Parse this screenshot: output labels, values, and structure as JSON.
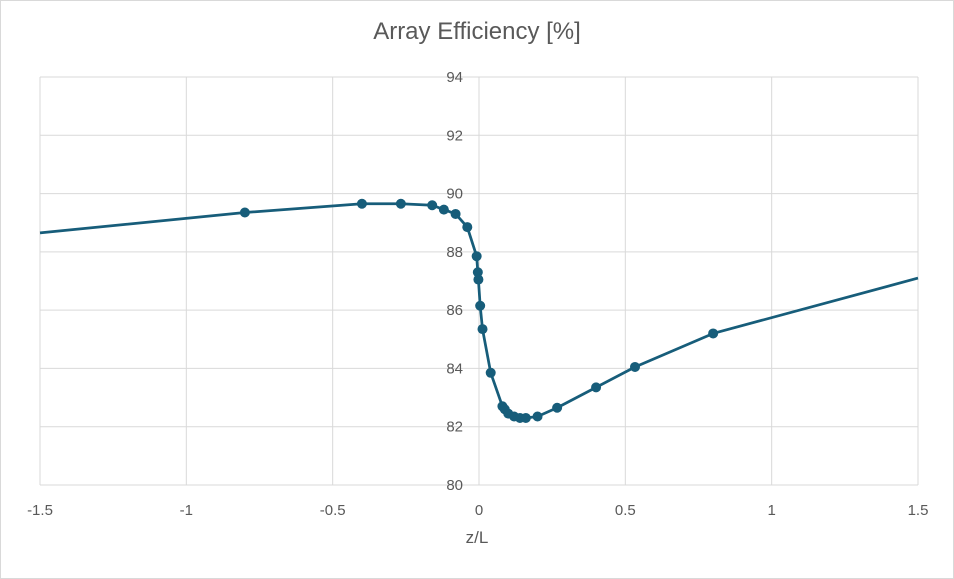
{
  "chart_data": {
    "type": "scatter",
    "title": "Array Efficiency [%]",
    "xlabel": "z/L",
    "ylabel": "",
    "xlim": [
      -1.5,
      1.5
    ],
    "ylim": [
      80,
      94
    ],
    "x_ticks": [
      -1.5,
      -1,
      -0.5,
      0,
      0.5,
      1,
      1.5
    ],
    "x_tick_labels": [
      "-1.5",
      "-1",
      "-0.5",
      "0",
      "0.5",
      "1",
      "1.5"
    ],
    "y_ticks": [
      80,
      82,
      84,
      86,
      88,
      90,
      92,
      94
    ],
    "y_tick_labels": [
      "80",
      "82",
      "84",
      "86",
      "88",
      "90",
      "92",
      "94"
    ],
    "grid": true,
    "legend": "none",
    "color": "#175d7a",
    "line_extension": {
      "left": {
        "x": -1.5,
        "y": 88.65
      },
      "right": {
        "x": 1.5,
        "y": 87.1
      }
    },
    "series": [
      {
        "x": [
          -0.8,
          -0.4,
          -0.267,
          -0.16,
          -0.12,
          -0.08,
          -0.04,
          -0.008,
          -0.004,
          -0.002,
          0.004,
          0.012,
          0.04,
          0.08,
          0.088,
          0.1,
          0.12,
          0.14,
          0.16,
          0.2,
          0.267,
          0.4,
          0.533,
          0.8
        ],
        "y": [
          89.35,
          89.65,
          89.65,
          89.6,
          89.45,
          89.3,
          88.85,
          87.85,
          87.3,
          87.05,
          86.15,
          85.35,
          83.85,
          82.7,
          82.6,
          82.45,
          82.35,
          82.3,
          82.3,
          82.35,
          82.65,
          83.35,
          84.05,
          85.2
        ]
      }
    ]
  }
}
